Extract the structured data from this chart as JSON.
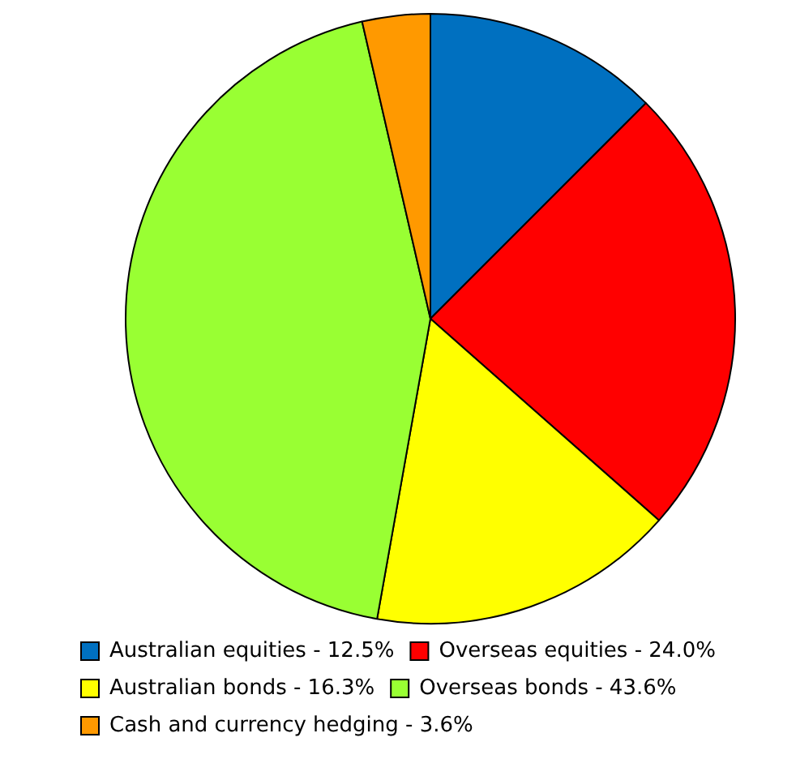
{
  "chart_data": {
    "type": "pie",
    "categories": [
      "Australian equities - 12.5%",
      "Overseas equities - 24.0%",
      "Australian bonds - 16.3%",
      "Overseas bonds - 43.6%",
      "Cash and currency hedging - 3.6%"
    ],
    "values": [
      12.5,
      24.0,
      16.3,
      43.6,
      3.6
    ],
    "colors": [
      "#0070c0",
      "#ff0000",
      "#ffff00",
      "#99ff33",
      "#ff9900"
    ],
    "legend": "bottom"
  }
}
